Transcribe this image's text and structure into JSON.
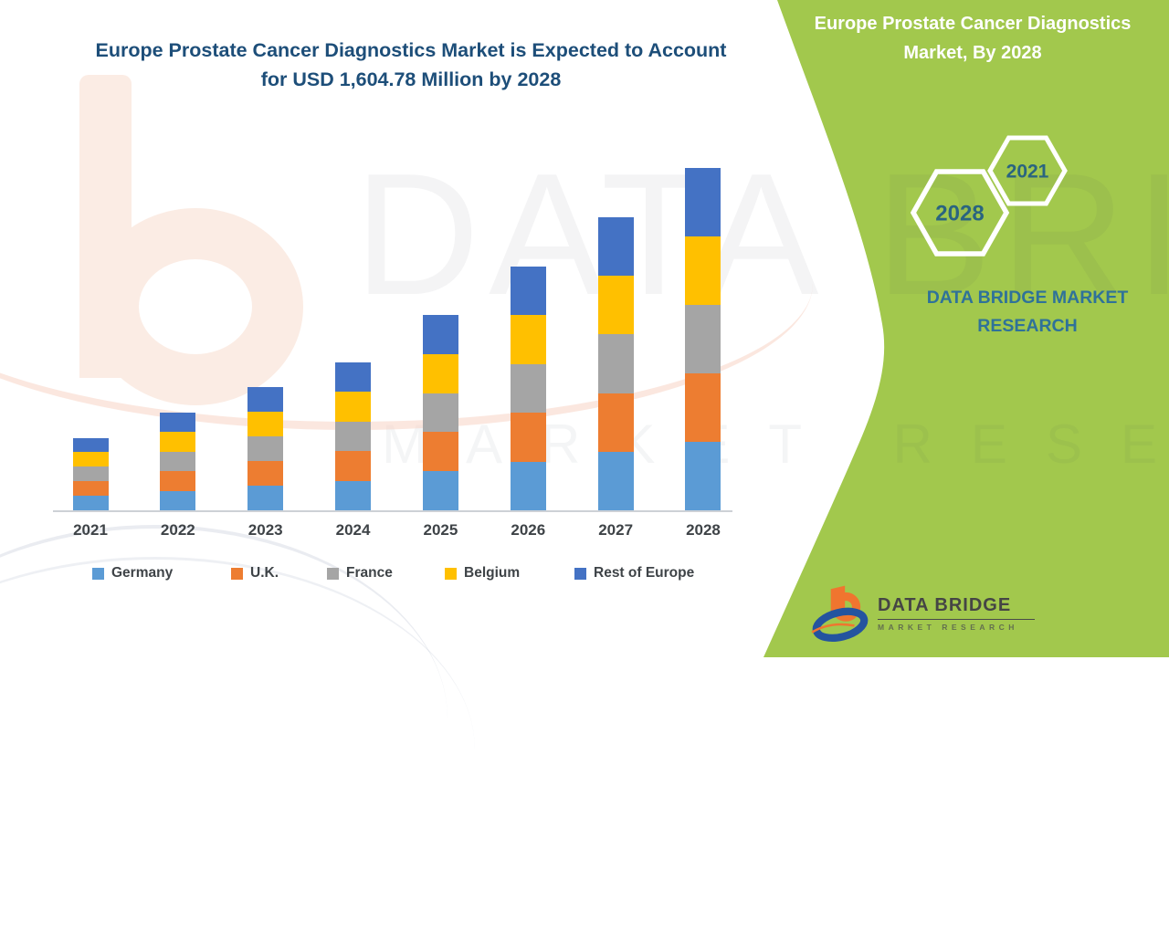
{
  "main_title": {
    "line1": "Europe Prostate Cancer Diagnostics Market is Expected to Account",
    "line2": "for USD 1,604.78 Million by 2028"
  },
  "side_panel": {
    "title_line1": "Europe Prostate Cancer Diagnostics",
    "title_line2": "Market, By 2028",
    "hexagon_small_label": "2021",
    "hexagon_large_label": "2028",
    "brand_line1": "DATA BRIDGE MARKET",
    "brand_line2": "RESEARCH",
    "panel_color": "#a2c84d"
  },
  "logo": {
    "name": "DATA BRIDGE",
    "subtext": "MARKET RESEARCH"
  },
  "watermark": {
    "big_text": "DATA BRIDGE",
    "spaced_text": "MARKET RESEARCH"
  },
  "colors": {
    "germany": "#5b9bd5",
    "uk": "#ed7d31",
    "france": "#a5a5a5",
    "belgium": "#ffc000",
    "rest_of_europe": "#4472c4",
    "panel_green": "#a2c84d",
    "title_navy": "#1d4e79",
    "brand_teal": "#2f7299",
    "hex_year_text": "#2a6480"
  },
  "chart_data": {
    "type": "bar",
    "stacked": true,
    "unit": "USD Million",
    "title": "Europe Prostate Cancer Diagnostics Market is Expected to Account for USD 1,604.78 Million by 2028",
    "final_year_total_label": "1,604.78",
    "categories": [
      "2021",
      "2022",
      "2023",
      "2024",
      "2025",
      "2026",
      "2027",
      "2028"
    ],
    "series": [
      {
        "name": "Germany",
        "color": "#5b9bd5",
        "values": [
          68,
          91.4,
          115.6,
          139,
          183.2,
          228.4,
          274.6,
          320.96
        ]
      },
      {
        "name": "U.K.",
        "color": "#ed7d31",
        "values": [
          68,
          91.4,
          115.6,
          139,
          183.2,
          228.4,
          274.6,
          320.96
        ]
      },
      {
        "name": "France",
        "color": "#a5a5a5",
        "values": [
          68,
          91.4,
          115.6,
          139,
          183.2,
          228.4,
          274.6,
          320.96
        ]
      },
      {
        "name": "Belgium",
        "color": "#ffc000",
        "values": [
          68,
          91.4,
          115.6,
          139,
          183.2,
          228.4,
          274.6,
          320.95
        ]
      },
      {
        "name": "Rest of Europe",
        "color": "#4472c4",
        "values": [
          68,
          91.4,
          115.6,
          139,
          183.2,
          228.4,
          274.6,
          320.95
        ]
      }
    ],
    "totals": [
      340,
      457,
      578,
      695,
      916,
      1142,
      1373,
      1604.78
    ],
    "xlabel": "",
    "ylabel": "",
    "ylim": [
      0,
      1700
    ],
    "y_axis_visible": false,
    "gridlines": false,
    "legend_position": "bottom"
  }
}
